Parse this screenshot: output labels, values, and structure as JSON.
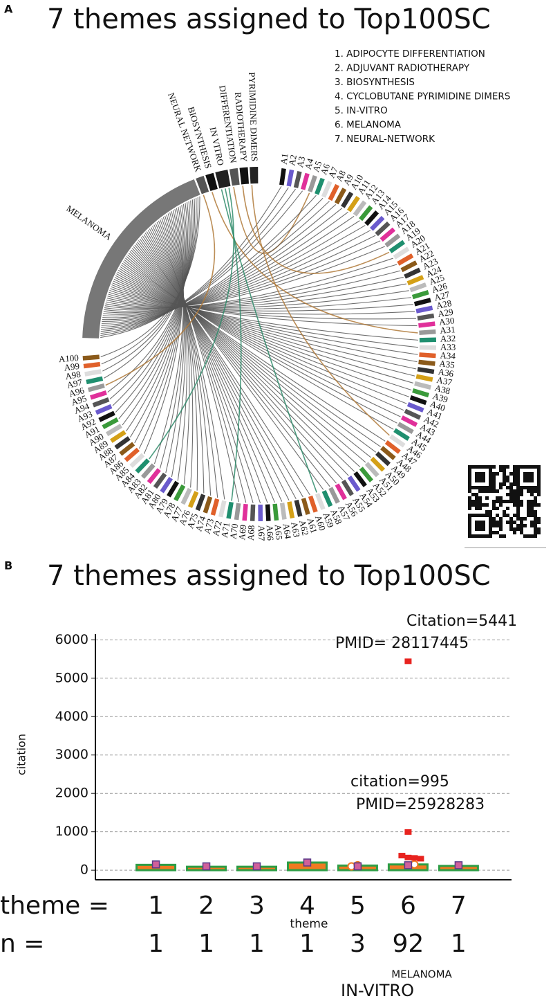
{
  "panel_a": {
    "letter": "A",
    "title": "7 themes assigned to Top100SC",
    "legend": [
      "1. ADIPOCYTE DIFFERENTIATION",
      "2. ADJUVANT RADIOTHERAPY",
      "3. BIOSYNTHESIS",
      "4. CYCLOBUTANE PYRIMIDINE DIMERS",
      "5. IN-VITRO",
      "6. MELANOMA",
      "7. NEURAL-NETWORK"
    ],
    "arcs": [
      {
        "label": "MELANOMA",
        "theme": 6
      },
      {
        "label": "NEURAL NETWORK",
        "theme": 7
      },
      {
        "label": "BIOSYNTHESIS",
        "theme": 3
      },
      {
        "label": "IN VITRO",
        "theme": 5
      },
      {
        "label": "DIFFERENTIATION",
        "theme": 1
      },
      {
        "label": "RADIOTHERAPY",
        "theme": 2
      },
      {
        "label": "PYRIMIDINE DIMERS",
        "theme": 4
      }
    ],
    "article_labels": [
      "A1",
      "A2",
      "A3",
      "A4",
      "A5",
      "A6",
      "A7",
      "A8",
      "A9",
      "A10",
      "A11",
      "A12",
      "A13",
      "A14",
      "A15",
      "A16",
      "A17",
      "A18",
      "A19",
      "A20",
      "A21",
      "A22",
      "A23",
      "A24",
      "A25",
      "A26",
      "A27",
      "A28",
      "A29",
      "A30",
      "A31",
      "A32",
      "A33",
      "A34",
      "A35",
      "A36",
      "A37",
      "A38",
      "A39",
      "A40",
      "A41",
      "A42",
      "A43",
      "A44",
      "A45",
      "A46",
      "A47",
      "A48",
      "A49",
      "A50",
      "A51",
      "A52",
      "A53",
      "A54",
      "A55",
      "A56",
      "A57",
      "A58",
      "A59",
      "A60",
      "A61",
      "A62",
      "A63",
      "A64",
      "A65",
      "A66",
      "A67",
      "A68",
      "A69",
      "A70",
      "A71",
      "A72",
      "A73",
      "A74",
      "A75",
      "A76",
      "A77",
      "A78",
      "A79",
      "A80",
      "A81",
      "A82",
      "A83",
      "A84",
      "A85",
      "A86",
      "A87",
      "A88",
      "A89",
      "A90",
      "A91",
      "A92",
      "A93",
      "A94",
      "A95",
      "A96",
      "A97",
      "A98",
      "A99",
      "A100"
    ]
  },
  "chart_data": {
    "type": "box",
    "letter": "B",
    "title": "7 themes assigned to Top100SC",
    "ylabel": "citation",
    "xlabel": "theme",
    "x_prefix": "theme =",
    "n_prefix": "n =",
    "x": [
      1,
      2,
      3,
      4,
      5,
      6,
      7
    ],
    "n": [
      1,
      1,
      1,
      1,
      3,
      92,
      1
    ],
    "box_values": [
      140,
      90,
      90,
      200,
      120,
      150,
      110
    ],
    "mean_values": [
      150,
      100,
      100,
      200,
      100,
      130,
      130
    ],
    "red_points": {
      "x": [
        6,
        6,
        6,
        6,
        6,
        6
      ],
      "y": [
        5441,
        995,
        380,
        330,
        320,
        300
      ]
    },
    "circle_points": {
      "x": [
        5,
        5,
        6
      ],
      "y": [
        100,
        130,
        150
      ]
    },
    "annotations": [
      "Citation=5441",
      "PMID= 28117445",
      "citation=995",
      "PMID=25928283"
    ],
    "notes": [
      "MELANOMA",
      "IN-VITRO"
    ],
    "xlim": [
      -0.2,
      8.05
    ],
    "ylim": [
      -250,
      6150
    ],
    "yticks": [
      0,
      1000,
      2000,
      3000,
      4000,
      5000,
      6000
    ],
    "grid": true
  }
}
